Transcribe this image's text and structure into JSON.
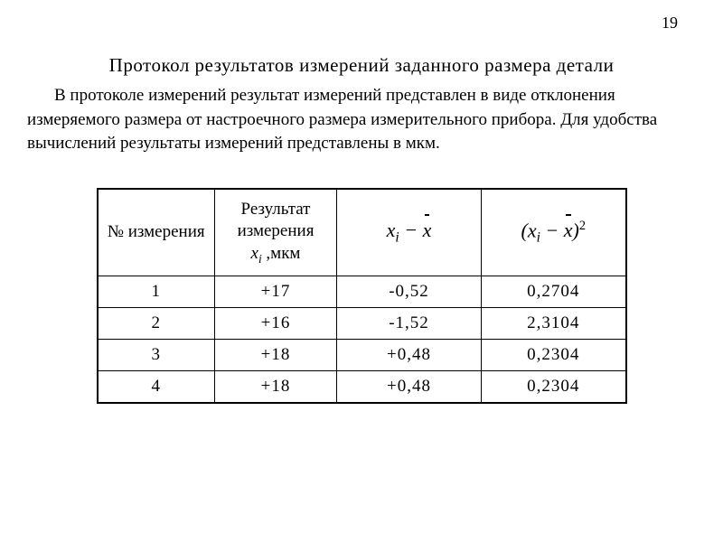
{
  "page_number": "19",
  "heading": "Протокол  результатов измерений заданного  размера детали",
  "paragraph": "В протоколе измерений результат измерений представлен в виде отклонения измеряемого размера от настроечного размера измерительного прибора. Для удобства вычислений результаты измерений представлены в мкм.",
  "table": {
    "headers": {
      "col1": "№ измерения",
      "col2_line1": "Результат",
      "col2_line2": "измерения",
      "col2_line3_prefix": "x",
      "col2_line3_sub": "i",
      "col2_line3_suffix": " ,мкм"
    },
    "rows": [
      {
        "n": "1",
        "xi": "+17",
        "dev": "-0,52",
        "sq": "0,2704"
      },
      {
        "n": "2",
        "xi": "+16",
        "dev": "-1,52",
        "sq": "2,3104"
      },
      {
        "n": "3",
        "xi": "+18",
        "dev": "+0,48",
        "sq": "0,2304"
      },
      {
        "n": "4",
        "xi": "+18",
        "dev": "+0,48",
        "sq": "0,2304"
      }
    ]
  }
}
